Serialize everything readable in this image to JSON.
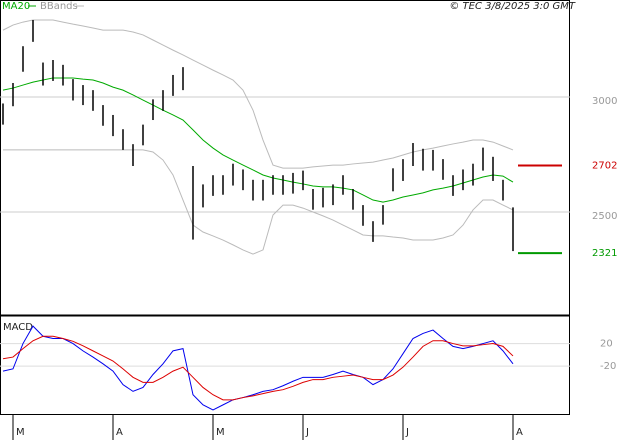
{
  "chart_data": {
    "type": "ohlc",
    "credit": "© TEC 3/8/2025 3:0 GMT",
    "price": {
      "ylim": [
        2052,
        3422
      ],
      "yticks": [
        2500,
        3000
      ],
      "grid": true,
      "high": [
        2972,
        3061,
        3221,
        3335,
        3150,
        3161,
        3140,
        3078,
        3052,
        3030,
        2965,
        2922,
        2860,
        2795,
        2880,
        2990,
        3030,
        3096,
        3130,
        2700,
        2620,
        2660,
        2660,
        2710,
        2685,
        2640,
        2640,
        2660,
        2660,
        2670,
        2680,
        2600,
        2605,
        2620,
        2660,
        2600,
        2530,
        2460,
        2530,
        2690,
        2730,
        2800,
        2775,
        2770,
        2730,
        2660,
        2685,
        2710,
        2780,
        2740,
        2640,
        2520
      ],
      "low": [
        2880,
        2960,
        3110,
        3240,
        3050,
        3070,
        3050,
        2985,
        2965,
        2940,
        2875,
        2830,
        2770,
        2700,
        2790,
        2900,
        2940,
        3005,
        3030,
        2380,
        2520,
        2570,
        2575,
        2615,
        2595,
        2550,
        2550,
        2575,
        2575,
        2580,
        2595,
        2510,
        2520,
        2530,
        2575,
        2510,
        2440,
        2370,
        2445,
        2590,
        2635,
        2700,
        2680,
        2680,
        2640,
        2570,
        2595,
        2615,
        2680,
        2635,
        2550,
        2330
      ],
      "bar_color": "#000000",
      "series": [
        {
          "name": "MA20",
          "color": "#00aa00",
          "values": [
            3030,
            3039,
            3052,
            3065,
            3074,
            3083,
            3083,
            3083,
            3078,
            3074,
            3061,
            3043,
            3030,
            3009,
            2987,
            2965,
            2943,
            2922,
            2900,
            2857,
            2813,
            2778,
            2748,
            2726,
            2704,
            2683,
            2661,
            2648,
            2639,
            2630,
            2622,
            2613,
            2609,
            2609,
            2604,
            2596,
            2574,
            2552,
            2543,
            2552,
            2565,
            2574,
            2583,
            2596,
            2604,
            2613,
            2626,
            2639,
            2652,
            2661,
            2656,
            2630
          ]
        },
        {
          "name": "BBands",
          "color": "#bbbbbb",
          "values": [
            3291,
            3313,
            3326,
            3335,
            3335,
            3335,
            3326,
            3317,
            3309,
            3300,
            3291,
            3291,
            3291,
            3283,
            3270,
            3248,
            3226,
            3204,
            3183,
            3161,
            3139,
            3117,
            3096,
            3074,
            3030,
            2943,
            2813,
            2704,
            2691,
            2691,
            2691,
            2696,
            2700,
            2704,
            2704,
            2709,
            2713,
            2717,
            2726,
            2735,
            2748,
            2761,
            2770,
            2778,
            2787,
            2796,
            2804,
            2813,
            2813,
            2804,
            2787,
            2770
          ],
          "lower": [
            2770,
            2770,
            2770,
            2770,
            2770,
            2770,
            2770,
            2770,
            2770,
            2770,
            2770,
            2770,
            2770,
            2770,
            2770,
            2761,
            2726,
            2661,
            2552,
            2443,
            2413,
            2396,
            2378,
            2357,
            2335,
            2317,
            2335,
            2487,
            2530,
            2530,
            2517,
            2500,
            2483,
            2465,
            2443,
            2422,
            2400,
            2396,
            2396,
            2391,
            2387,
            2378,
            2378,
            2378,
            2387,
            2400,
            2443,
            2509,
            2552,
            2552,
            2530,
            2509
          ]
        }
      ],
      "levels": [
        {
          "value": 2702,
          "color": "#cc0000"
        },
        {
          "value": 2321,
          "color": "#009900"
        }
      ]
    },
    "macd": {
      "title": "MACD",
      "ylim": [
        -107,
        69
      ],
      "yticks": [
        20,
        -20
      ],
      "series": [
        {
          "color": "#0000ee",
          "values": [
            -29,
            -25,
            20,
            51,
            33,
            29,
            29,
            20,
            7,
            -4,
            -16,
            -29,
            -53,
            -65,
            -58,
            -35,
            -16,
            7,
            11,
            -71,
            -89,
            -98,
            -89,
            -80,
            -76,
            -71,
            -65,
            -62,
            -55,
            -47,
            -40,
            -40,
            -40,
            -35,
            -29,
            -35,
            -40,
            -53,
            -44,
            -25,
            2,
            29,
            38,
            44,
            29,
            15,
            11,
            15,
            20,
            25,
            7,
            -16
          ]
        },
        {
          "color": "#dd0000",
          "values": [
            -7,
            -4,
            11,
            25,
            33,
            33,
            29,
            24,
            16,
            7,
            -2,
            -11,
            -25,
            -40,
            -49,
            -49,
            -40,
            -29,
            -22,
            -40,
            -58,
            -71,
            -80,
            -80,
            -76,
            -73,
            -69,
            -65,
            -62,
            -56,
            -49,
            -44,
            -44,
            -40,
            -38,
            -36,
            -40,
            -44,
            -44,
            -36,
            -22,
            -4,
            15,
            25,
            25,
            20,
            16,
            16,
            18,
            20,
            15,
            -2
          ]
        }
      ]
    },
    "xticks": [
      {
        "value": 1,
        "label": "M"
      },
      {
        "value": 11,
        "label": "A"
      },
      {
        "value": 21,
        "label": "M"
      },
      {
        "value": 30,
        "label": "J"
      },
      {
        "value": 40,
        "label": "J"
      },
      {
        "value": 51,
        "label": "A"
      }
    ]
  }
}
